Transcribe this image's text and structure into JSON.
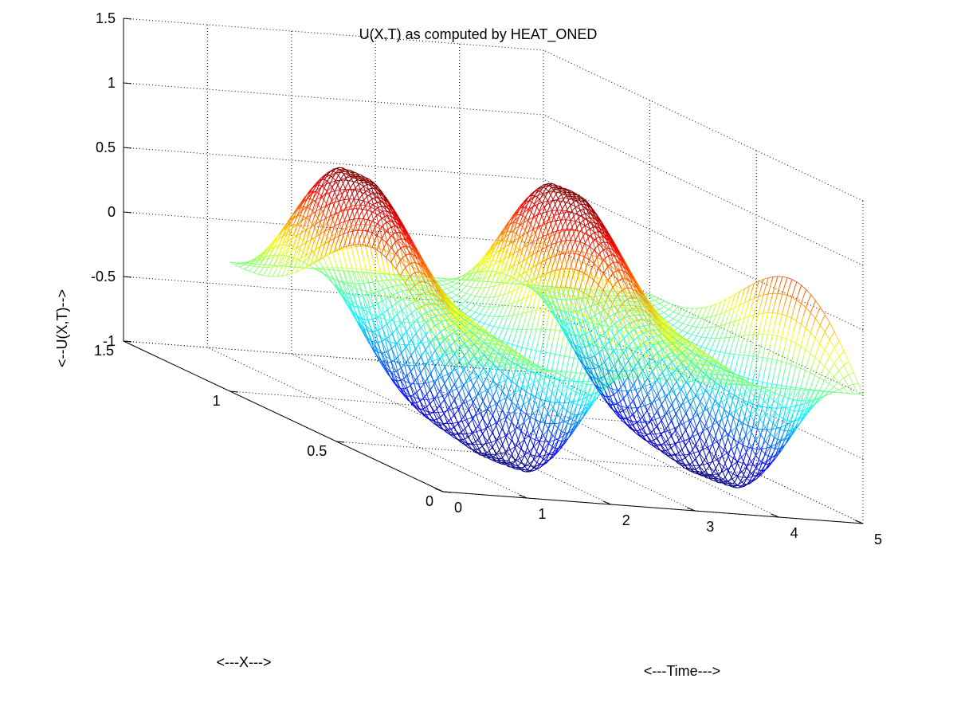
{
  "chart_data": {
    "type": "surface-mesh",
    "title": "U(X,T) as computed by HEAT_ONED",
    "xlabel": "<---X--->",
    "ylabel": "<---Time--->",
    "zlabel": "<--U(X,T)-->",
    "x_range": [
      0,
      1.5
    ],
    "t_range": [
      0,
      5
    ],
    "z_range": [
      -1,
      1.5
    ],
    "x_ticks": [
      "0",
      "0.5",
      "1",
      "1.5"
    ],
    "t_ticks": [
      "0",
      "1",
      "2",
      "3",
      "4",
      "5"
    ],
    "z_ticks": [
      "-1",
      "-0.5",
      "0",
      "0.5",
      "1",
      "1.5"
    ],
    "x_domain": [
      0,
      1
    ],
    "t_domain": [
      0,
      5
    ],
    "z_min": -1,
    "z_max": 1,
    "grid": true,
    "colormap": "jet"
  }
}
